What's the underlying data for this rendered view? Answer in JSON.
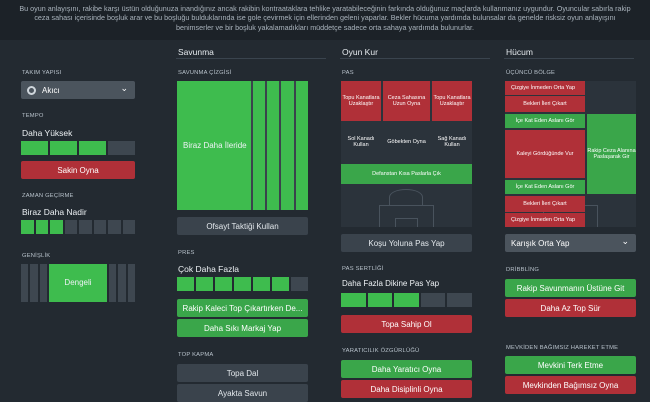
{
  "description": "Bu oyun anlayışını, rakibe karşı üstün olduğunuza inandığınız ancak rakibin kontraataklara tehlike yaratabileceğinin farkında olduğunuz maçlarda kullanmanız uygundur. Oyuncular sabırla rakip ceza sahası içerisinde boşluk arar ve bu boşluğu bulduklarında ise gole çevirmek için ellerinden geleni yaparlar. Bekler hücuma yardımda bulunsalar da genelde risksiz oyun anlayışını benimserler ve bir boşluk yakalamadıkları müddetçe sadece orta sahaya yardımda bulunurlar.",
  "colors": {
    "bg": "#232a31",
    "green": "#3aa64a",
    "red": "#b03038",
    "dark": "#3a434c"
  },
  "left": {
    "team_style_label": "TAKIM YAPISI",
    "team_style_value": "Akıcı",
    "tempo_label": "TEMPO",
    "tempo_value": "Daha Yüksek",
    "tempo_level": 0.75,
    "tempo_button": "Sakin Oyna",
    "time_label": "ZAMAN GEÇİRME",
    "time_value": "Biraz Daha Nadir",
    "time_level": 0.35,
    "width_label": "GENİŞLİK",
    "width_value": "Dengeli"
  },
  "defence": {
    "header": "Savunma",
    "line_label": "SAVUNMA ÇİZGİSİ",
    "line_value": "Biraz Daha İleride",
    "offside_button": "Ofsayt Taktiği Kullan",
    "press_label": "PRES",
    "press_value": "Çok Daha Fazla",
    "press_level": 0.85,
    "press_btn1": "Rakip Kaleci Top Çıkartırken De...",
    "press_btn2": "Daha Sıkı Markaj Yap",
    "tackle_label": "TOP KAPMA",
    "tackle_btn1": "Topa Dal",
    "tackle_btn2": "Ayakta Savun"
  },
  "build": {
    "header": "Oyun Kur",
    "pas_label": "PAS",
    "zones": [
      "Topu Kanatlara Uzaklaştır",
      "Ceza Sahasına Uzun Oyna",
      "Topu Kanatlara Uzaklaştır",
      "Sol Kanadı Kullan",
      "Göbekten Oyna",
      "Sağ Kanadı Kullan",
      "Defanstan Kısa Paslarla Çık"
    ],
    "pass_button": "Koşu Yoluna Pas Yap",
    "pass_range_label": "PAS SERTLİĞİ",
    "pass_range_value": "Daha Fazla Dikine Pas Yap",
    "pass_range_level": 0.6,
    "keep_ball_button": "Topa Sahip Ol",
    "creative_label": "YARATICILIK ÖZGÜRLÜĞÜ",
    "creative_btn1": "Daha Yaratıcı Oyna",
    "creative_btn2": "Daha Disiplinli Oyna"
  },
  "attack": {
    "header": "Hücum",
    "zone_label": "ÜÇÜNCÜ BÖLGE",
    "zones": [
      "Çizgiye İnmeden Orta Yap",
      "Bekleri İleri Çıkart",
      "İçe Kat Eden Aslanı Gör",
      "Kaleyi Gördüğünde Vur",
      "Rakip Ceza Alanına Paslaşarak Gir",
      "İçe Kat Eden Aslanı Gör",
      "Bekleri İleri Çıkart",
      "Çizgiye İnmeden Orta Yap"
    ],
    "cross_value": "Karışık Orta Yap",
    "dribble_label": "DRİBBLİNG",
    "dribble_btn1": "Rakip Savunmanın Üstüne Git",
    "dribble_btn2": "Daha Az Top Sür",
    "free_label": "MEVKİDEN BAĞIMSIZ HAREKET ETME",
    "free_btn1": "Mevkini Terk Etme",
    "free_btn2": "Mevkinden Bağımsız Oyna"
  }
}
